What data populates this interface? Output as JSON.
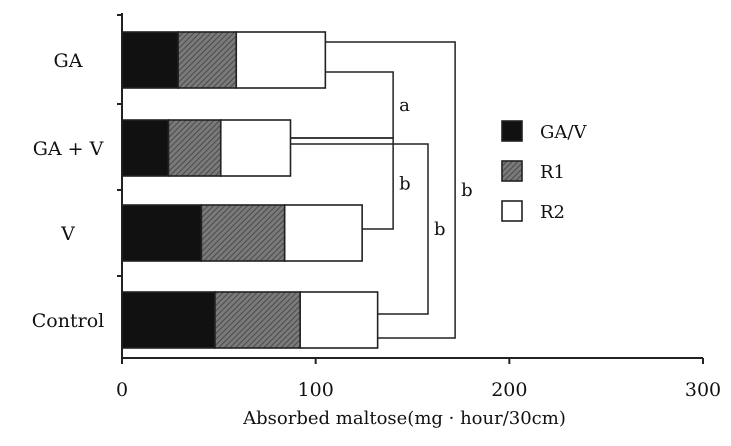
{
  "chart_data": {
    "type": "bar",
    "orientation": "horizontal",
    "stacked": true,
    "categories": [
      "GA",
      "GA + V",
      "V",
      "Control"
    ],
    "series": [
      {
        "name": "GA/V",
        "values": [
          29,
          24,
          41,
          48
        ],
        "color": "#111111",
        "pattern": "solid"
      },
      {
        "name": "R1",
        "values": [
          30,
          27,
          43,
          44
        ],
        "color": "#666666",
        "pattern": "hatched"
      },
      {
        "name": "R2",
        "values": [
          46,
          36,
          40,
          40
        ],
        "color": "#ffffff",
        "pattern": "open"
      }
    ],
    "totals": [
      105,
      87,
      124,
      132
    ],
    "xlabel": "Absorbed maltose(mg · hour/30cm)",
    "ylabel": "",
    "title": "",
    "xlim": [
      0,
      300
    ],
    "xticks": [
      "0",
      "100",
      "200",
      "300"
    ],
    "grid": false,
    "legend_position": "right",
    "significance": [
      {
        "label": "a",
        "from": "GA",
        "to": "GA + V",
        "bracket_x": 140
      },
      {
        "label": "b",
        "from": "GA + V",
        "to": "V",
        "bracket_x": 140
      },
      {
        "label": "b",
        "from": "GA + V",
        "to": "Control",
        "bracket_x": 158
      },
      {
        "label": "b",
        "from": "GA",
        "to": "Control",
        "bracket_x": 172
      }
    ]
  }
}
